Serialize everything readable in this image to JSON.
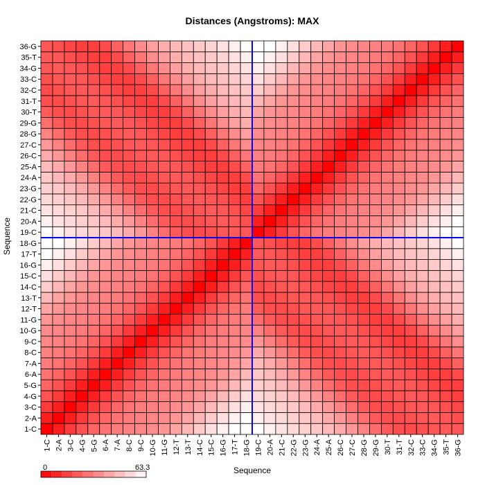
{
  "chart_data": {
    "type": "heatmap",
    "title": "Distances (Angstroms):  MAX",
    "xlabel": "Sequence",
    "ylabel": "Sequence",
    "categories": [
      "1-C",
      "2-A",
      "3-C",
      "4-G",
      "5-G",
      "6-A",
      "7-A",
      "8-C",
      "9-C",
      "10-G",
      "11-G",
      "12-T",
      "13-T",
      "14-C",
      "15-C",
      "16-G",
      "17-T",
      "18-G",
      "19-C",
      "20-A",
      "21-C",
      "22-G",
      "23-G",
      "24-A",
      "25-A",
      "26-C",
      "27-C",
      "28-G",
      "29-G",
      "30-T",
      "31-T",
      "32-C",
      "33-C",
      "34-G",
      "35-T",
      "36-G"
    ],
    "value_range": [
      0,
      63.3
    ],
    "colorbar": {
      "min_label": "0",
      "max_label": "63.3",
      "low_color": "#ff0000",
      "high_color": "#ffffff"
    },
    "crosshair": {
      "x_between": [
        "18-G",
        "19-C"
      ],
      "y_between": [
        "18-G",
        "19-C"
      ],
      "color": "#0000ff"
    },
    "diagonal_value": 0,
    "max_distance_pair": [
      "1-C",
      "19-C"
    ]
  }
}
